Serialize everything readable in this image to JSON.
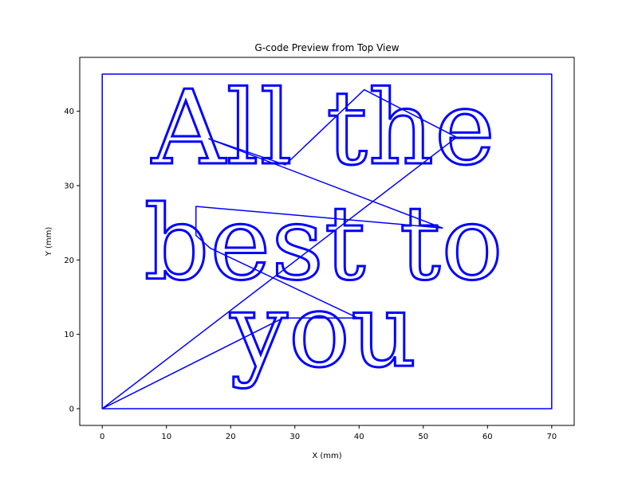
{
  "chart_data": {
    "type": "line",
    "title": "G-code Preview from Top View",
    "xlabel": "X (mm)",
    "ylabel": "Y (mm)",
    "xlim": [
      -3.5,
      73.5
    ],
    "ylim": [
      -2.25,
      47.25
    ],
    "xticks": [
      0,
      10,
      20,
      30,
      40,
      50,
      60,
      70
    ],
    "yticks": [
      0,
      10,
      20,
      30,
      40
    ],
    "grid": false,
    "line_color": "#0000ff",
    "text_lines": [
      {
        "text": "All the",
        "x": 34.5,
        "y": 33
      },
      {
        "text": "best to",
        "x": 34.5,
        "y": 17.5
      },
      {
        "text": "you",
        "x": 34.5,
        "y": 5.8
      }
    ],
    "series": [
      {
        "values": [
          [
            0,
            0
          ],
          [
            0,
            45
          ],
          [
            70,
            45
          ],
          [
            70,
            0
          ],
          [
            0,
            0
          ],
          [
            28.2,
            12.2
          ],
          [
            39.8,
            12.2
          ],
          [
            16.8,
            21.6
          ],
          [
            14.6,
            23.3
          ],
          [
            14.6,
            27.2
          ],
          [
            53,
            24.3
          ],
          [
            16.6,
            36.3
          ],
          [
            28.5,
            32.8
          ],
          [
            40.8,
            42.9
          ],
          [
            55.2,
            36.5
          ],
          [
            0,
            0
          ]
        ]
      }
    ]
  }
}
